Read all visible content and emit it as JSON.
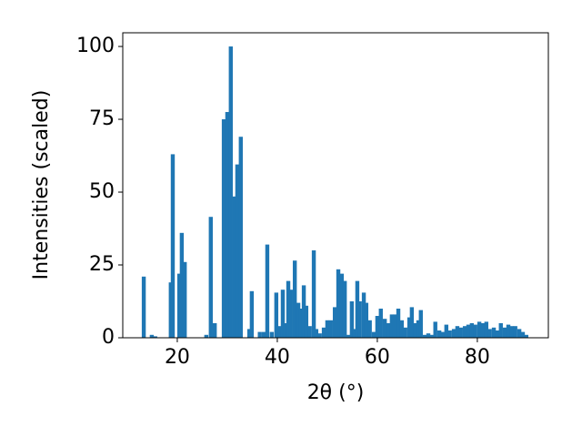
{
  "chart_data": {
    "type": "bar",
    "xlabel": "2θ (°)",
    "ylabel": "Intensities (scaled)",
    "color": "#1f77b4",
    "x": [
      13.3,
      14.9,
      15.6,
      18.7,
      19.1,
      20.4,
      20.9,
      21.5,
      25.8,
      26.7,
      27.5,
      29.3,
      30.0,
      30.7,
      31.5,
      32.0,
      32.7,
      34.4,
      34.9,
      36.5,
      37.3,
      38.0,
      38.9,
      39.8,
      40.5,
      41.1,
      41.6,
      42.2,
      42.7,
      43.5,
      44.2,
      44.7,
      45.3,
      45.8,
      46.5,
      47.3,
      47.8,
      48.5,
      49.3,
      50.0,
      50.7,
      51.5,
      52.2,
      52.9,
      53.5,
      54.2,
      54.9,
      55.5,
      56.0,
      56.5,
      57.3,
      57.8,
      58.5,
      59.3,
      60.0,
      60.7,
      61.5,
      62.2,
      62.9,
      63.6,
      64.2,
      64.9,
      65.6,
      66.4,
      66.9,
      67.6,
      68.2,
      68.7,
      69.5,
      70.2,
      70.9,
      71.6,
      72.4,
      73.1,
      73.8,
      74.5,
      75.3,
      76.0,
      76.7,
      77.5,
      78.2,
      78.9,
      79.6,
      80.4,
      81.1,
      81.8,
      82.5,
      83.3,
      84.0,
      84.7,
      85.5,
      86.2,
      86.9,
      87.6,
      88.4,
      89.1,
      89.8
    ],
    "values": [
      21,
      1,
      0.5,
      19,
      63,
      22,
      36,
      26,
      1,
      41.5,
      5,
      75,
      77.5,
      100,
      48.5,
      59.5,
      69,
      3,
      16,
      2,
      2,
      32,
      2,
      15.5,
      4,
      16.5,
      5,
      19.5,
      16.5,
      26.5,
      12,
      10,
      18,
      11,
      4,
      30,
      3,
      1.5,
      3.5,
      6,
      6,
      10.5,
      23.5,
      22,
      19.5,
      1,
      12.5,
      3,
      19.5,
      12.5,
      15.5,
      12,
      6,
      2,
      7.5,
      10,
      6.5,
      5,
      8,
      8,
      10,
      6,
      3.5,
      7,
      10.5,
      5,
      6,
      9.5,
      1,
      1.5,
      1,
      5.5,
      2.5,
      2,
      4.5,
      2.5,
      3,
      4,
      3.5,
      4,
      4.5,
      5,
      4.5,
      5.5,
      5,
      5.5,
      3,
      3.5,
      2.5,
      5,
      3.5,
      4.5,
      4,
      4,
      3,
      2,
      1
    ],
    "xlim": [
      9.1,
      94.2
    ],
    "ylim": [
      0,
      104.7
    ],
    "xticks": [
      20,
      40,
      60,
      80
    ],
    "yticks": [
      0,
      25,
      50,
      75,
      100
    ]
  }
}
